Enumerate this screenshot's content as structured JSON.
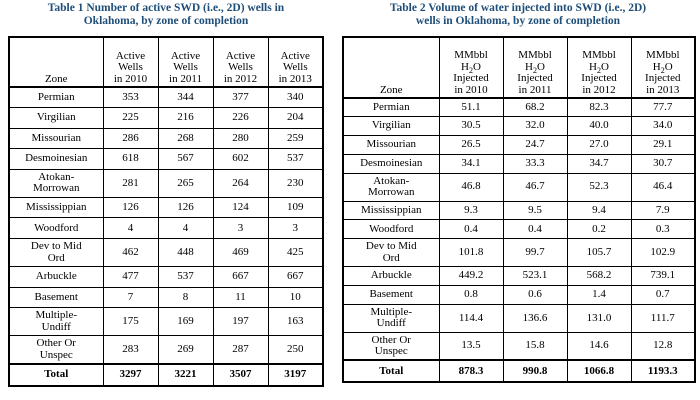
{
  "table1": {
    "caption_line1": "Table 1 Number of active SWD (i.e., 2D) wells in",
    "caption_line2": "Oklahoma, by zone of completion",
    "header": {
      "zone": "Zone",
      "columns": [
        [
          "Active",
          "Wells",
          "in 2010"
        ],
        [
          "Active",
          "Wells",
          "in 2011"
        ],
        [
          "Active",
          "Wells",
          "in 2012"
        ],
        [
          "Active",
          "Wells",
          "in 2013"
        ]
      ]
    },
    "rows": [
      {
        "zone": [
          "Permian"
        ],
        "values": [
          "353",
          "344",
          "377",
          "340"
        ]
      },
      {
        "zone": [
          "Virgilian"
        ],
        "values": [
          "225",
          "216",
          "226",
          "204"
        ]
      },
      {
        "zone": [
          "Missourian"
        ],
        "values": [
          "286",
          "268",
          "280",
          "259"
        ]
      },
      {
        "zone": [
          "Desmoinesian"
        ],
        "values": [
          "618",
          "567",
          "602",
          "537"
        ]
      },
      {
        "zone": [
          "Atokan-",
          "Morrowan"
        ],
        "values": [
          "281",
          "265",
          "264",
          "230"
        ]
      },
      {
        "zone": [
          "Mississippian"
        ],
        "values": [
          "126",
          "126",
          "124",
          "109"
        ]
      },
      {
        "zone": [
          "Woodford"
        ],
        "values": [
          "4",
          "4",
          "3",
          "3"
        ]
      },
      {
        "zone": [
          "Dev to Mid",
          "Ord"
        ],
        "values": [
          "462",
          "448",
          "469",
          "425"
        ]
      },
      {
        "zone": [
          "Arbuckle"
        ],
        "values": [
          "477",
          "537",
          "667",
          "667"
        ]
      },
      {
        "zone": [
          "Basement"
        ],
        "values": [
          "7",
          "8",
          "11",
          "10"
        ]
      },
      {
        "zone": [
          "Multiple-",
          "Undiff"
        ],
        "values": [
          "175",
          "169",
          "197",
          "163"
        ]
      },
      {
        "zone": [
          "Other Or",
          "Unspec"
        ],
        "values": [
          "283",
          "269",
          "287",
          "250"
        ]
      }
    ],
    "total": {
      "zone": "Total",
      "values": [
        "3297",
        "3221",
        "3507",
        "3197"
      ]
    }
  },
  "table2": {
    "caption_line1": "Table 2 Volume of water injected into SWD (i.e., 2D)",
    "caption_line2": "wells in Oklahoma, by zone of completion",
    "header": {
      "zone": "Zone",
      "columns": [
        {
          "l1": "MMbbl",
          "l2_base": "H",
          "l2_sub": "2",
          "l2_end": "O",
          "l3": "Injected",
          "l4": "in 2010"
        },
        {
          "l1": "MMbbl",
          "l2_base": "H",
          "l2_sub": "2",
          "l2_end": "O",
          "l3": "Injected",
          "l4": "in 2011"
        },
        {
          "l1": "MMbbl",
          "l2_base": "H",
          "l2_sub": "2",
          "l2_end": "O",
          "l3": "Injected",
          "l4": "in 2012"
        },
        {
          "l1": "MMbbl",
          "l2_base": "H",
          "l2_sub": "2",
          "l2_end": "O",
          "l3": "Injected",
          "l4": "in 2013"
        }
      ]
    },
    "rows": [
      {
        "zone": [
          "Permian"
        ],
        "values": [
          "51.1",
          "68.2",
          "82.3",
          "77.7"
        ]
      },
      {
        "zone": [
          "Virgilian"
        ],
        "values": [
          "30.5",
          "32.0",
          "40.0",
          "34.0"
        ]
      },
      {
        "zone": [
          "Missourian"
        ],
        "values": [
          "26.5",
          "24.7",
          "27.0",
          "29.1"
        ]
      },
      {
        "zone": [
          "Desmoinesian"
        ],
        "values": [
          "34.1",
          "33.3",
          "34.7",
          "30.7"
        ]
      },
      {
        "zone": [
          "Atokan-",
          "Morrowan"
        ],
        "values": [
          "46.8",
          "46.7",
          "52.3",
          "46.4"
        ]
      },
      {
        "zone": [
          "Mississippian"
        ],
        "values": [
          "9.3",
          "9.5",
          "9.4",
          "7.9"
        ]
      },
      {
        "zone": [
          "Woodford"
        ],
        "values": [
          "0.4",
          "0.4",
          "0.2",
          "0.3"
        ]
      },
      {
        "zone": [
          "Dev to Mid",
          "Ord"
        ],
        "values": [
          "101.8",
          "99.7",
          "105.7",
          "102.9"
        ]
      },
      {
        "zone": [
          "Arbuckle"
        ],
        "values": [
          "449.2",
          "523.1",
          "568.2",
          "739.1"
        ]
      },
      {
        "zone": [
          "Basement"
        ],
        "values": [
          "0.8",
          "0.6",
          "1.4",
          "0.7"
        ]
      },
      {
        "zone": [
          "Multiple-",
          "Undiff"
        ],
        "values": [
          "114.4",
          "136.6",
          "131.0",
          "111.7"
        ]
      },
      {
        "zone": [
          "Other Or",
          "Unspec"
        ],
        "values": [
          "13.5",
          "15.8",
          "14.6",
          "12.8"
        ]
      }
    ],
    "total": {
      "zone": "Total",
      "values": [
        "878.3",
        "990.8",
        "1066.8",
        "1193.3"
      ]
    }
  }
}
